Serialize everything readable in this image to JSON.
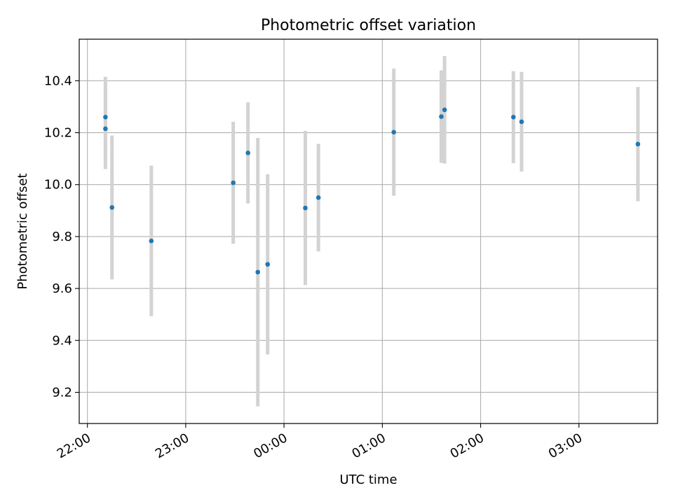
{
  "chart_data": {
    "type": "scatter",
    "title": "Photometric offset variation",
    "xlabel": "UTC time",
    "ylabel": "Photometric offset",
    "x_unit": "hh:mm UTC",
    "xlim": [
      "21:55",
      "03:48"
    ],
    "ylim": [
      9.08,
      10.56
    ],
    "x_ticks": [
      "22:00",
      "23:00",
      "00:00",
      "01:00",
      "02:00",
      "03:00"
    ],
    "y_ticks": [
      9.2,
      9.4,
      9.6,
      9.8,
      10.0,
      10.2,
      10.4
    ],
    "grid": true,
    "marker_color": "#1f77b4",
    "errorbar_color": "#d3d3d3",
    "points": [
      {
        "x": "22:11",
        "y": 10.26,
        "err": 0.155
      },
      {
        "x": "22:11",
        "y": 10.215,
        "err": 0.155
      },
      {
        "x": "22:15",
        "y": 9.912,
        "err": 0.277
      },
      {
        "x": "22:39",
        "y": 9.783,
        "err": 0.29
      },
      {
        "x": "23:29",
        "y": 10.007,
        "err": 0.235
      },
      {
        "x": "23:38",
        "y": 10.122,
        "err": 0.195
      },
      {
        "x": "23:44",
        "y": 9.663,
        "err": 0.517
      },
      {
        "x": "23:50",
        "y": 9.693,
        "err": 0.347
      },
      {
        "x": "00:13",
        "y": 9.91,
        "err": 0.297
      },
      {
        "x": "00:21",
        "y": 9.95,
        "err": 0.207
      },
      {
        "x": "01:07",
        "y": 10.202,
        "err": 0.245
      },
      {
        "x": "01:36",
        "y": 10.262,
        "err": 0.178
      },
      {
        "x": "01:38",
        "y": 10.288,
        "err": 0.207
      },
      {
        "x": "02:20",
        "y": 10.26,
        "err": 0.177
      },
      {
        "x": "02:25",
        "y": 10.242,
        "err": 0.192
      },
      {
        "x": "03:36",
        "y": 10.156,
        "err": 0.22
      }
    ]
  }
}
